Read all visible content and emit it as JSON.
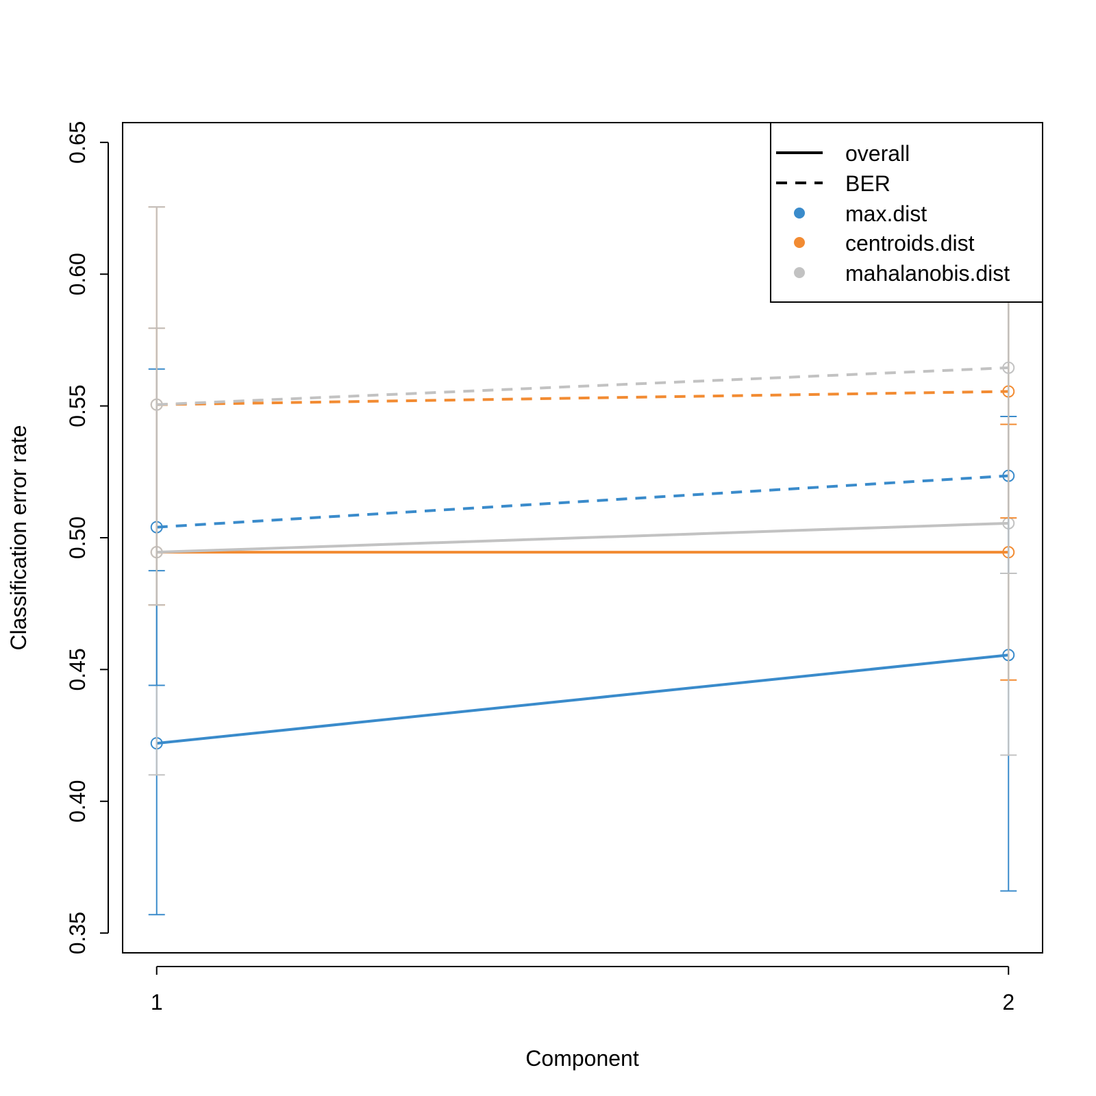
{
  "chart_data": {
    "type": "line",
    "xlabel": "Component",
    "ylabel": "Classification error rate",
    "x": [
      1,
      2
    ],
    "x_ticks": [
      "1",
      "2"
    ],
    "ylim": [
      0.35,
      0.65
    ],
    "y_ticks": [
      "0.35",
      "0.40",
      "0.45",
      "0.50",
      "0.55",
      "0.60",
      "0.65"
    ],
    "grid": false,
    "legend_position": "top-right",
    "legend": {
      "line_types": [
        {
          "label": "overall",
          "style": "solid"
        },
        {
          "label": "BER",
          "style": "dashed"
        }
      ],
      "distances": [
        {
          "label": "max.dist",
          "color": "#3a8bcb"
        },
        {
          "label": "centroids.dist",
          "color": "#f28b32"
        },
        {
          "label": "mahalanobis.dist",
          "color": "#c2c2c2"
        }
      ]
    },
    "series": [
      {
        "name": "max.dist",
        "measure": "overall",
        "style": "solid",
        "color": "#3a8bcb",
        "values": [
          0.422,
          0.4555
        ],
        "lower": [
          0.357,
          0.366
        ],
        "upper": [
          0.4875,
          0.546
        ]
      },
      {
        "name": "centroids.dist",
        "measure": "overall",
        "style": "solid",
        "color": "#f28b32",
        "values": [
          0.4945,
          0.4945
        ],
        "lower": [
          0.4745,
          0.446
        ],
        "upper": [
          0.5795,
          0.543
        ]
      },
      {
        "name": "mahalanobis.dist",
        "measure": "overall",
        "style": "solid",
        "color": "#c2c2c2",
        "values": [
          0.4945,
          0.5055
        ],
        "lower": [
          0.41,
          0.4175
        ],
        "upper": [
          0.5795,
          0.5945
        ]
      },
      {
        "name": "max.dist",
        "measure": "BER",
        "style": "dashed",
        "color": "#3a8bcb",
        "values": [
          0.504,
          0.5235
        ],
        "lower": [
          0.444,
          0.4865
        ],
        "upper": [
          0.564,
          0.6015
        ]
      },
      {
        "name": "centroids.dist",
        "measure": "BER",
        "style": "dashed",
        "color": "#f28b32",
        "values": [
          0.5505,
          0.5555
        ],
        "lower": [
          0.4745,
          0.5075
        ],
        "upper": [
          0.6255,
          0.6035
        ]
      },
      {
        "name": "mahalanobis.dist",
        "measure": "BER",
        "style": "dashed",
        "color": "#c2c2c2",
        "values": [
          0.5505,
          0.5645
        ],
        "lower": [
          0.4745,
          0.4865
        ],
        "upper": [
          0.6255,
          0.6425
        ]
      }
    ]
  }
}
